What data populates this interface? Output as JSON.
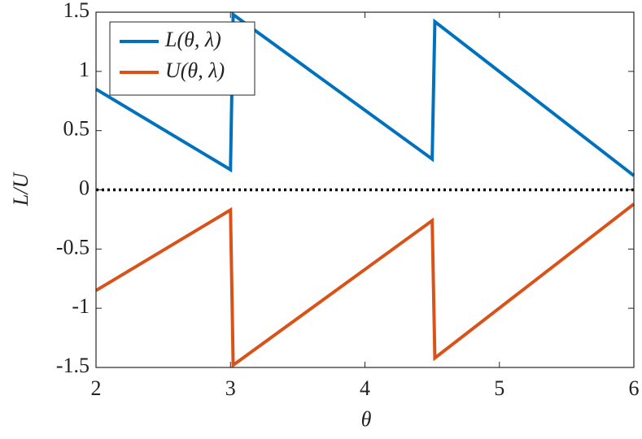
{
  "chart_data": {
    "type": "line",
    "x_label": "θ",
    "y_label": "L/U",
    "x": [
      2,
      3,
      3.02,
      4.5,
      4.52,
      6
    ],
    "series": [
      {
        "name": "L(θ, λ)",
        "color": "#0072bd",
        "values": [
          0.85,
          0.17,
          1.48,
          0.26,
          1.42,
          0.12
        ]
      },
      {
        "name": "U(θ, λ)",
        "color": "#d95319",
        "values": [
          -0.85,
          -0.17,
          -1.48,
          -0.26,
          -1.42,
          -0.12
        ]
      }
    ],
    "reference_line": 0,
    "xlim": [
      2,
      6
    ],
    "ylim": [
      -1.5,
      1.5
    ],
    "xticks": [
      2,
      3,
      4,
      5,
      6
    ],
    "yticks": [
      -1.5,
      -1,
      -0.5,
      0,
      0.5,
      1,
      1.5
    ],
    "grid": false,
    "legend": "upper-left"
  }
}
